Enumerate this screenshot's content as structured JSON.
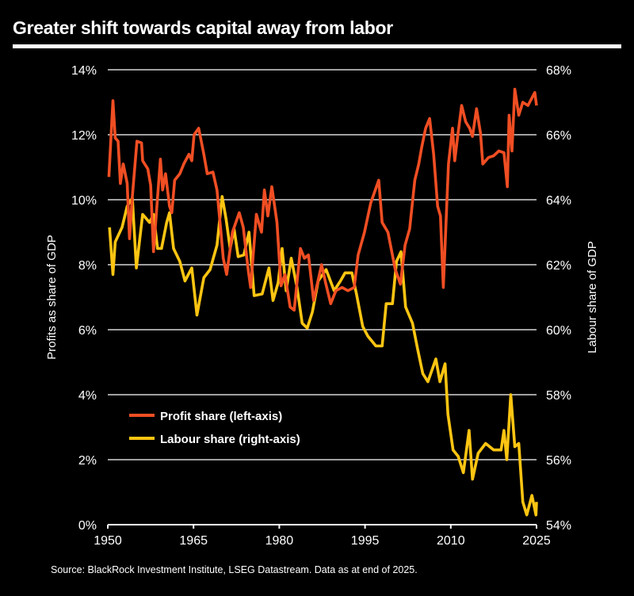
{
  "title": "Greater shift towards capital away from labor",
  "source": "Source: BlackRock Investment Institute, LSEG Datastream. Data as at end of 2025.",
  "chart_data": {
    "type": "line",
    "title": "Greater shift towards capital away from labor",
    "ylabel_left": "Profits as share of GDP",
    "ylabel_right": "Labour share of GDP",
    "xlim": [
      1950,
      2025
    ],
    "ylim_left": [
      0,
      14
    ],
    "ylim_right": [
      54,
      68
    ],
    "x_ticks": [
      "1950",
      "1965",
      "1980",
      "1995",
      "2010",
      "2025"
    ],
    "y_ticks_left": [
      "0%",
      "2%",
      "4%",
      "6%",
      "8%",
      "10%",
      "12%",
      "14%"
    ],
    "y_ticks_right": [
      "54%",
      "56%",
      "58%",
      "60%",
      "62%",
      "64%",
      "66%",
      "68%"
    ],
    "grid": true,
    "legend_position": "bottom-left",
    "series": [
      {
        "name": "Profit share (left-axis)",
        "axis": "left",
        "color": "#f04e23",
        "x": [
          1950.2,
          1950.9,
          1951.3,
          1951.8,
          1952.2,
          1952.7,
          1953.4,
          1953.8,
          1954.3,
          1955.1,
          1955.9,
          1956.1,
          1957,
          1957.5,
          1958,
          1959.2,
          1959.6,
          1960.1,
          1960.8,
          1961.2,
          1961.7,
          1962.6,
          1963.3,
          1964.2,
          1964.7,
          1965.1,
          1965.9,
          1966.8,
          1967.4,
          1968.4,
          1969.1,
          1969.8,
          1970.2,
          1970.8,
          1971.8,
          1973,
          1973.7,
          1974.6,
          1975,
          1976,
          1976.9,
          1977.4,
          1978,
          1978.7,
          1979.6,
          1980.3,
          1981,
          1981.9,
          1982.6,
          1983.7,
          1984.4,
          1985.1,
          1986,
          1987.4,
          1988.1,
          1989,
          1989.9,
          1991,
          1992,
          1993.1,
          1993.8,
          1994.9,
          1996,
          1997.4,
          1998,
          1999,
          2000.3,
          2001.2,
          2002,
          2002.8,
          2003.7,
          2004.4,
          2004.9,
          2005.6,
          2006.3,
          2007,
          2007.7,
          2008.2,
          2008.7,
          2009.1,
          2009.6,
          2010.3,
          2010.7,
          2011.2,
          2011.9,
          2012.6,
          2013.3,
          2013.8,
          2014.5,
          2015.2,
          2015.6,
          2016.6,
          2017.5,
          2018.4,
          2019.3,
          2019.9,
          2020.2,
          2020.7,
          2021.2,
          2021.9,
          2022.6,
          2023.5,
          2024.7,
          2025
        ],
        "y": [
          10.7,
          13.05,
          11.9,
          11.8,
          10.5,
          11.1,
          10.5,
          8.8,
          10.1,
          11.8,
          11.75,
          11.2,
          10.95,
          10.45,
          8.4,
          11.25,
          10.3,
          10.8,
          9.8,
          9.6,
          10.6,
          10.8,
          11.1,
          11.4,
          11.2,
          12.0,
          12.2,
          11.4,
          10.8,
          10.85,
          10.3,
          9.0,
          8.2,
          7.7,
          9.0,
          9.6,
          9.15,
          7.8,
          7.3,
          9.55,
          9.0,
          10.3,
          9.5,
          10.4,
          9.3,
          7.35,
          7.7,
          6.7,
          6.6,
          8.5,
          8.2,
          8.3,
          6.9,
          8.0,
          7.45,
          6.8,
          7.2,
          7.3,
          7.2,
          7.3,
          8.3,
          9.0,
          9.9,
          10.6,
          9.3,
          9.0,
          7.85,
          7.4,
          8.6,
          9.1,
          10.6,
          11.1,
          11.6,
          12.2,
          12.5,
          11.4,
          9.8,
          9.5,
          7.3,
          9.0,
          11.1,
          12.2,
          11.2,
          11.95,
          12.9,
          12.4,
          12.2,
          11.95,
          12.8,
          12.05,
          11.1,
          11.3,
          11.35,
          11.5,
          11.45,
          10.4,
          12.6,
          11.5,
          13.4,
          12.6,
          13.0,
          12.9,
          13.3,
          12.9
        ]
      },
      {
        "name": "Labour share (right-axis)",
        "axis": "right",
        "color": "#fdc512",
        "x": [
          1950.3,
          1950.9,
          1951.3,
          1952.5,
          1953.4,
          1954.3,
          1955,
          1956.1,
          1957.3,
          1958,
          1958.7,
          1959.4,
          1960.3,
          1960.8,
          1961.5,
          1962.6,
          1963.5,
          1964.7,
          1965.6,
          1966.8,
          1967.9,
          1969.1,
          1970,
          1970.7,
          1971.4,
          1972.1,
          1972.8,
          1973.8,
          1974.7,
          1975.6,
          1977,
          1978.2,
          1978.9,
          1979.8,
          1980.5,
          1981.2,
          1982.1,
          1983.1,
          1984,
          1984.9,
          1985.8,
          1986.8,
          1988.2,
          1989.6,
          1990.7,
          1991.5,
          1992.7,
          1993.5,
          1994.6,
          1995.5,
          1996.9,
          1998,
          1998.7,
          1999.8,
          2000.5,
          2001.3,
          2002.1,
          2003.3,
          2004.2,
          2005.1,
          2006,
          2007.4,
          2008.1,
          2009,
          2009.5,
          2010.4,
          2011.3,
          2012.2,
          2013.2,
          2013.8,
          2014.8,
          2016.1,
          2017.5,
          2018.8,
          2019.3,
          2019.8,
          2020.5,
          2021.2,
          2021.9,
          2022.6,
          2023.3,
          2024.2,
          2024.9,
          2025
        ],
        "y": [
          63.15,
          61.7,
          62.7,
          63.15,
          63.8,
          64.05,
          61.9,
          63.55,
          63.3,
          63.55,
          62.5,
          62.5,
          63.3,
          63.6,
          62.5,
          62.1,
          61.5,
          61.9,
          60.45,
          61.6,
          61.85,
          62.6,
          64.1,
          63.4,
          62.5,
          63.1,
          62.25,
          62.3,
          63.0,
          61.05,
          61.1,
          61.9,
          60.9,
          61.45,
          62.5,
          61.2,
          62.2,
          61.3,
          60.2,
          60.05,
          60.55,
          61.5,
          61.85,
          61.2,
          61.5,
          61.75,
          61.75,
          61.1,
          60.1,
          59.8,
          59.5,
          59.5,
          60.8,
          60.8,
          62.1,
          62.4,
          60.7,
          60.2,
          59.4,
          58.65,
          58.4,
          59.1,
          58.4,
          58.95,
          57.4,
          56.3,
          56.1,
          55.6,
          56.9,
          55.4,
          56.2,
          56.5,
          56.3,
          56.3,
          56.9,
          56.0,
          58.0,
          56.4,
          56.5,
          54.7,
          54.3,
          54.9,
          54.3,
          54.7
        ]
      }
    ]
  }
}
